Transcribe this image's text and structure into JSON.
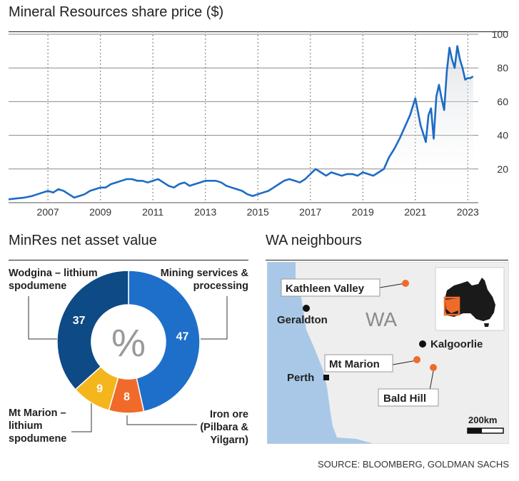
{
  "line_chart": {
    "title": "Mineral Resources share price ($)"
  },
  "donut": {
    "title": "MinRes net asset value"
  },
  "map": {
    "title": "WA neighbours",
    "region_label": "WA",
    "places": [
      {
        "name": "Kathleen Valley",
        "type": "project",
        "color": "#f06b2a"
      },
      {
        "name": "Geraldton",
        "type": "town"
      },
      {
        "name": "Kalgoorlie",
        "type": "town"
      },
      {
        "name": "Mt Marion",
        "type": "project",
        "color": "#f06b2a"
      },
      {
        "name": "Perth",
        "type": "capital"
      },
      {
        "name": "Bald Hill",
        "type": "project",
        "color": "#f06b2a"
      }
    ],
    "scale_label": "200km",
    "colors": {
      "sea": "#a9c8e8",
      "land": "#eeeeee",
      "australia": "#1a1a1a",
      "highlight": "#f06b2a"
    }
  },
  "source": "SOURCE: BLOOMBERG, GOLDMAN SACHS",
  "chart_data": [
    {
      "type": "line",
      "title": "Mineral Resources share price ($)",
      "x_ticks": [
        "2007",
        "2009",
        "2011",
        "2013",
        "2015",
        "2017",
        "2019",
        "2021",
        "2023"
      ],
      "y_ticks": [
        20,
        40,
        60,
        80,
        100
      ],
      "ylim": [
        0,
        100
      ],
      "xlim": [
        2006.0,
        2023.9
      ],
      "grid": true,
      "line_color": "#1c6cc4",
      "x": [
        2006.0,
        2006.3,
        2006.6,
        2006.9,
        2007.1,
        2007.3,
        2007.5,
        2007.7,
        2007.9,
        2008.1,
        2008.3,
        2008.5,
        2008.7,
        2008.9,
        2009.1,
        2009.3,
        2009.5,
        2009.7,
        2009.9,
        2010.1,
        2010.3,
        2010.5,
        2010.7,
        2010.9,
        2011.1,
        2011.3,
        2011.5,
        2011.7,
        2011.9,
        2012.1,
        2012.3,
        2012.5,
        2012.7,
        2012.9,
        2013.1,
        2013.3,
        2013.5,
        2013.7,
        2013.9,
        2014.1,
        2014.3,
        2014.5,
        2014.7,
        2014.9,
        2015.1,
        2015.3,
        2015.5,
        2015.7,
        2015.9,
        2016.1,
        2016.3,
        2016.5,
        2016.7,
        2016.9,
        2017.1,
        2017.3,
        2017.5,
        2017.7,
        2017.9,
        2018.1,
        2018.3,
        2018.5,
        2018.7,
        2018.9,
        2019.1,
        2019.3,
        2019.5,
        2019.7,
        2019.9,
        2020.1,
        2020.3,
        2020.5,
        2020.7,
        2020.9,
        2021.1,
        2021.3,
        2021.5,
        2021.7,
        2021.9,
        2022.0,
        2022.1,
        2022.2,
        2022.3,
        2022.4,
        2022.5,
        2022.6,
        2022.7,
        2022.8,
        2022.9,
        2023.0,
        2023.1,
        2023.2,
        2023.3,
        2023.4,
        2023.5,
        2023.6,
        2023.7
      ],
      "values": [
        2,
        2.5,
        3,
        4,
        5,
        6,
        7,
        6,
        8,
        7,
        5,
        3,
        4,
        5,
        7,
        8,
        9,
        9,
        11,
        12,
        13,
        14,
        14,
        13,
        13,
        12,
        13,
        14,
        12,
        10,
        9,
        11,
        12,
        10,
        11,
        12,
        13,
        13,
        13,
        12,
        10,
        9,
        8,
        7,
        5,
        4,
        5,
        6,
        7,
        9,
        11,
        13,
        14,
        13,
        12,
        14,
        17,
        20,
        18,
        16,
        18,
        17,
        16,
        17,
        17,
        16,
        18,
        17,
        16,
        18,
        20,
        27,
        32,
        38,
        45,
        52,
        62,
        46,
        36,
        52,
        56,
        38,
        63,
        70,
        62,
        55,
        78,
        92,
        85,
        80,
        93,
        85,
        80,
        73,
        74,
        74,
        75
      ]
    },
    {
      "type": "pie",
      "center_label": "%",
      "slices": [
        {
          "label": "Mining services & processing",
          "value": 47,
          "color": "#1e6fc9"
        },
        {
          "label": "Iron ore (Pilbara & Yilgarn)",
          "value": 8,
          "color": "#f06b2a"
        },
        {
          "label": "Mt Marion – lithium spodumene",
          "value": 9,
          "color": "#f5b51d"
        },
        {
          "label": "Wodgina – lithium spodumene",
          "value": 37,
          "color": "#0d4a86"
        }
      ]
    }
  ]
}
